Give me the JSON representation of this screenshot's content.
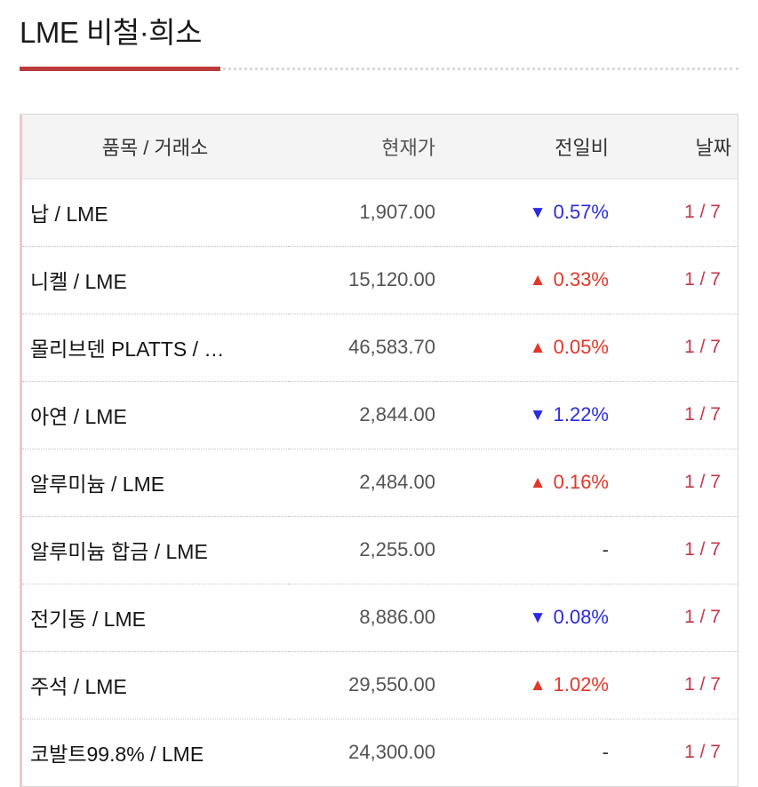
{
  "header": {
    "title": "LME 비철·희소"
  },
  "table": {
    "columns": [
      "품목 / 거래소",
      "현재가",
      "전일비",
      "날짜"
    ],
    "rows": [
      {
        "item": "납 / LME",
        "price": "1,907.00",
        "change": {
          "arrow": "▼",
          "value": "0.57%",
          "direction": "down"
        },
        "date": "1 / 7"
      },
      {
        "item": "니켈 / LME",
        "price": "15,120.00",
        "change": {
          "arrow": "▲",
          "value": "0.33%",
          "direction": "up"
        },
        "date": "1 / 7"
      },
      {
        "item": "몰리브덴 PLATTS / …",
        "price": "46,583.70",
        "change": {
          "arrow": "▲",
          "value": "0.05%",
          "direction": "up"
        },
        "date": "1 / 7"
      },
      {
        "item": "아연 / LME",
        "price": "2,844.00",
        "change": {
          "arrow": "▼",
          "value": "1.22%",
          "direction": "down"
        },
        "date": "1 / 7"
      },
      {
        "item": "알루미늄 / LME",
        "price": "2,484.00",
        "change": {
          "arrow": "▲",
          "value": "0.16%",
          "direction": "up"
        },
        "date": "1 / 7"
      },
      {
        "item": "알루미늄 합금 / LME",
        "price": "2,255.00",
        "change": {
          "arrow": "",
          "value": "-",
          "direction": "flat"
        },
        "date": "1 / 7"
      },
      {
        "item": "전기동 / LME",
        "price": "8,886.00",
        "change": {
          "arrow": "▼",
          "value": "0.08%",
          "direction": "down"
        },
        "date": "1 / 7"
      },
      {
        "item": "주석 / LME",
        "price": "29,550.00",
        "change": {
          "arrow": "▲",
          "value": "1.02%",
          "direction": "up"
        },
        "date": "1 / 7"
      },
      {
        "item": "코발트99.8% / LME",
        "price": "24,300.00",
        "change": {
          "arrow": "",
          "value": "-",
          "direction": "flat"
        },
        "date": "1 / 7"
      }
    ]
  },
  "colors": {
    "accent_underline": "#bb3b3b",
    "up_red": "#e2372a",
    "down_blue": "#2b2be0",
    "date_red": "#c4374b",
    "header_bg": "#f4f4f4"
  }
}
